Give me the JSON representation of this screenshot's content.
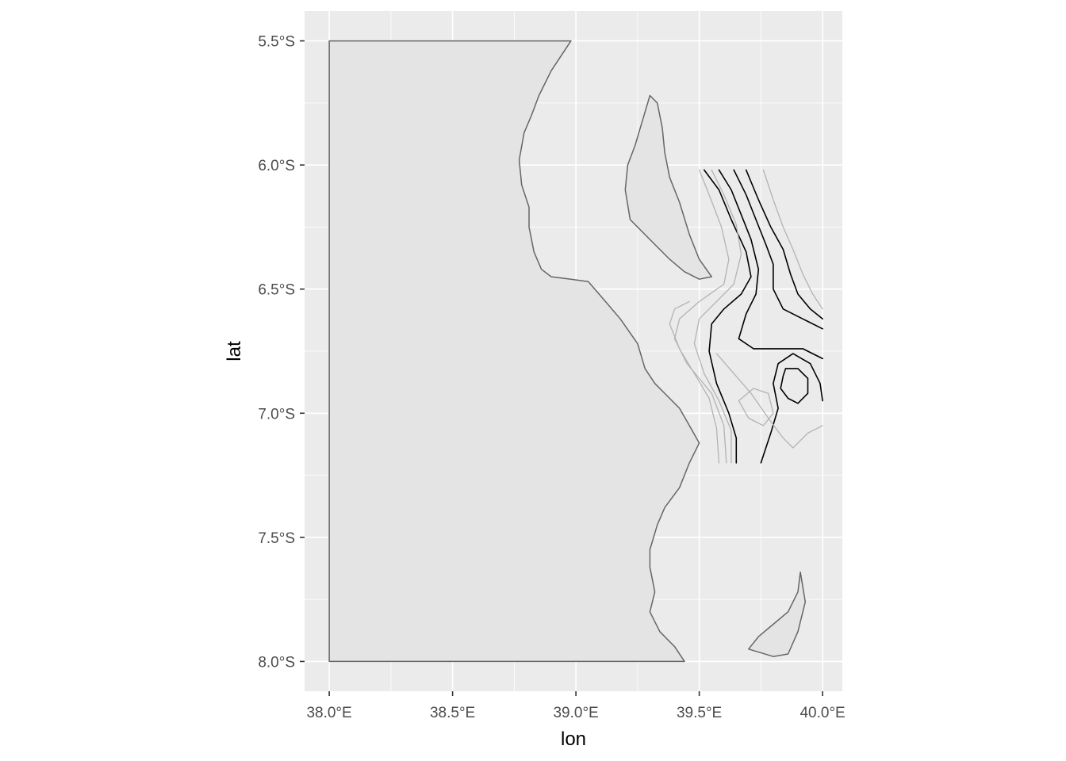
{
  "map": {
    "type": "map",
    "xlabel": "lon",
    "ylabel": "lat",
    "xlim": [
      37.9,
      40.08
    ],
    "ylim": [
      -8.12,
      -5.38
    ],
    "x_ticks": [
      {
        "value": 38.0,
        "label": "38.0°E"
      },
      {
        "value": 38.5,
        "label": "38.5°E"
      },
      {
        "value": 39.0,
        "label": "39.0°E"
      },
      {
        "value": 39.5,
        "label": "39.5°E"
      },
      {
        "value": 40.0,
        "label": "40.0°E"
      }
    ],
    "y_ticks": [
      {
        "value": -5.5,
        "label": "5.5°S"
      },
      {
        "value": -6.0,
        "label": "6.0°S"
      },
      {
        "value": -6.5,
        "label": "6.5°S"
      },
      {
        "value": -7.0,
        "label": "7.0°S"
      },
      {
        "value": -7.5,
        "label": "7.5°S"
      },
      {
        "value": -8.0,
        "label": "8.0°S"
      }
    ],
    "grid": true,
    "colors": {
      "panel": "#ebebeb",
      "grid": "#ffffff",
      "land_fill": "#e4e4e4",
      "land_outline": "#666666",
      "contour_major": "#000000",
      "contour_minor": "#b3b3b3"
    },
    "layers": [
      {
        "name": "mainland",
        "kind": "land",
        "points": [
          [
            38.0,
            -5.5
          ],
          [
            38.98,
            -5.5
          ],
          [
            38.9,
            -5.62
          ],
          [
            38.85,
            -5.72
          ],
          [
            38.82,
            -5.8
          ],
          [
            38.79,
            -5.87
          ],
          [
            38.77,
            -5.98
          ],
          [
            38.78,
            -6.08
          ],
          [
            38.81,
            -6.17
          ],
          [
            38.81,
            -6.25
          ],
          [
            38.83,
            -6.35
          ],
          [
            38.86,
            -6.42
          ],
          [
            38.9,
            -6.45
          ],
          [
            38.98,
            -6.46
          ],
          [
            39.05,
            -6.47
          ],
          [
            39.12,
            -6.55
          ],
          [
            39.18,
            -6.62
          ],
          [
            39.25,
            -6.72
          ],
          [
            39.28,
            -6.82
          ],
          [
            39.32,
            -6.88
          ],
          [
            39.37,
            -6.93
          ],
          [
            39.42,
            -6.98
          ],
          [
            39.46,
            -7.05
          ],
          [
            39.5,
            -7.12
          ],
          [
            39.46,
            -7.2
          ],
          [
            39.42,
            -7.3
          ],
          [
            39.36,
            -7.38
          ],
          [
            39.33,
            -7.45
          ],
          [
            39.3,
            -7.55
          ],
          [
            39.3,
            -7.62
          ],
          [
            39.32,
            -7.72
          ],
          [
            39.3,
            -7.8
          ],
          [
            39.34,
            -7.88
          ],
          [
            39.4,
            -7.94
          ],
          [
            39.44,
            -8.0
          ],
          [
            38.0,
            -8.0
          ]
        ]
      },
      {
        "name": "zanzibar",
        "kind": "land",
        "points": [
          [
            39.3,
            -5.72
          ],
          [
            39.33,
            -5.75
          ],
          [
            39.35,
            -5.85
          ],
          [
            39.36,
            -5.95
          ],
          [
            39.38,
            -6.05
          ],
          [
            39.42,
            -6.15
          ],
          [
            39.46,
            -6.28
          ],
          [
            39.5,
            -6.38
          ],
          [
            39.55,
            -6.45
          ],
          [
            39.5,
            -6.46
          ],
          [
            39.44,
            -6.43
          ],
          [
            39.38,
            -6.38
          ],
          [
            39.3,
            -6.3
          ],
          [
            39.22,
            -6.22
          ],
          [
            39.2,
            -6.1
          ],
          [
            39.21,
            -6.0
          ],
          [
            39.24,
            -5.92
          ],
          [
            39.27,
            -5.82
          ]
        ]
      },
      {
        "name": "mafia",
        "kind": "land",
        "points": [
          [
            39.91,
            -7.64
          ],
          [
            39.9,
            -7.72
          ],
          [
            39.86,
            -7.8
          ],
          [
            39.8,
            -7.85
          ],
          [
            39.74,
            -7.9
          ],
          [
            39.7,
            -7.95
          ],
          [
            39.8,
            -7.98
          ],
          [
            39.86,
            -7.97
          ],
          [
            39.9,
            -7.88
          ],
          [
            39.93,
            -7.76
          ]
        ]
      },
      {
        "name": "contour-1",
        "kind": "contour-major",
        "points": [
          [
            39.52,
            -6.02
          ],
          [
            39.58,
            -6.1
          ],
          [
            39.63,
            -6.22
          ],
          [
            39.69,
            -6.35
          ],
          [
            39.71,
            -6.45
          ],
          [
            39.67,
            -6.52
          ],
          [
            39.6,
            -6.58
          ],
          [
            39.55,
            -6.64
          ],
          [
            39.54,
            -6.75
          ],
          [
            39.57,
            -6.88
          ],
          [
            39.62,
            -7.0
          ],
          [
            39.65,
            -7.1
          ],
          [
            39.65,
            -7.2
          ]
        ]
      },
      {
        "name": "contour-2",
        "kind": "contour-major",
        "points": [
          [
            39.58,
            -6.02
          ],
          [
            39.63,
            -6.1
          ],
          [
            39.67,
            -6.2
          ],
          [
            39.71,
            -6.3
          ],
          [
            39.74,
            -6.42
          ],
          [
            39.73,
            -6.52
          ],
          [
            39.69,
            -6.6
          ],
          [
            39.66,
            -6.7
          ],
          [
            39.72,
            -6.74
          ],
          [
            39.82,
            -6.74
          ],
          [
            39.92,
            -6.74
          ],
          [
            40.0,
            -6.78
          ]
        ]
      },
      {
        "name": "contour-3",
        "kind": "contour-major",
        "points": [
          [
            39.64,
            -6.02
          ],
          [
            39.69,
            -6.12
          ],
          [
            39.73,
            -6.22
          ],
          [
            39.77,
            -6.32
          ],
          [
            39.8,
            -6.4
          ],
          [
            39.8,
            -6.5
          ],
          [
            39.84,
            -6.58
          ],
          [
            39.92,
            -6.62
          ],
          [
            40.0,
            -6.66
          ]
        ]
      },
      {
        "name": "contour-4",
        "kind": "contour-major",
        "points": [
          [
            39.69,
            -6.02
          ],
          [
            39.74,
            -6.14
          ],
          [
            39.79,
            -6.25
          ],
          [
            39.84,
            -6.34
          ],
          [
            39.87,
            -6.44
          ],
          [
            39.9,
            -6.52
          ],
          [
            39.95,
            -6.58
          ],
          [
            40.0,
            -6.62
          ]
        ]
      },
      {
        "name": "contour-5",
        "kind": "contour-major",
        "points": [
          [
            39.75,
            -7.2
          ],
          [
            39.79,
            -7.08
          ],
          [
            39.82,
            -6.98
          ],
          [
            39.8,
            -6.88
          ],
          [
            39.82,
            -6.8
          ],
          [
            39.88,
            -6.76
          ],
          [
            39.95,
            -6.8
          ],
          [
            39.99,
            -6.88
          ],
          [
            40.0,
            -6.95
          ]
        ]
      },
      {
        "name": "contour-6",
        "kind": "contour-major",
        "points": [
          [
            39.85,
            -6.82
          ],
          [
            39.9,
            -6.82
          ],
          [
            39.94,
            -6.86
          ],
          [
            39.94,
            -6.92
          ],
          [
            39.9,
            -6.96
          ],
          [
            39.86,
            -6.94
          ],
          [
            39.83,
            -6.9
          ],
          [
            39.84,
            -6.85
          ],
          [
            39.85,
            -6.82
          ]
        ]
      },
      {
        "name": "contour-7",
        "kind": "contour-minor",
        "points": [
          [
            39.5,
            -6.02
          ],
          [
            39.54,
            -6.12
          ],
          [
            39.59,
            -6.25
          ],
          [
            39.62,
            -6.38
          ],
          [
            39.6,
            -6.48
          ],
          [
            39.5,
            -6.55
          ],
          [
            39.42,
            -6.62
          ],
          [
            39.4,
            -6.7
          ],
          [
            39.45,
            -6.8
          ],
          [
            39.55,
            -6.92
          ],
          [
            39.6,
            -7.05
          ],
          [
            39.61,
            -7.2
          ]
        ]
      },
      {
        "name": "contour-8",
        "kind": "contour-minor",
        "points": [
          [
            39.55,
            -6.02
          ],
          [
            39.6,
            -6.12
          ],
          [
            39.65,
            -6.24
          ],
          [
            39.67,
            -6.36
          ],
          [
            39.64,
            -6.48
          ],
          [
            39.57,
            -6.55
          ],
          [
            39.5,
            -6.62
          ],
          [
            39.48,
            -6.72
          ],
          [
            39.52,
            -6.84
          ],
          [
            39.58,
            -6.95
          ],
          [
            39.63,
            -7.07
          ],
          [
            39.63,
            -7.2
          ]
        ]
      },
      {
        "name": "contour-9",
        "kind": "contour-minor",
        "points": [
          [
            39.57,
            -6.76
          ],
          [
            39.64,
            -6.84
          ],
          [
            39.71,
            -6.92
          ],
          [
            39.78,
            -7.02
          ],
          [
            39.84,
            -7.1
          ],
          [
            39.88,
            -7.14
          ],
          [
            39.94,
            -7.08
          ],
          [
            40.0,
            -7.05
          ]
        ]
      },
      {
        "name": "contour-10",
        "kind": "contour-minor",
        "points": [
          [
            39.66,
            -6.95
          ],
          [
            39.72,
            -6.9
          ],
          [
            39.78,
            -6.92
          ],
          [
            39.8,
            -7.0
          ],
          [
            39.76,
            -7.05
          ],
          [
            39.7,
            -7.02
          ],
          [
            39.66,
            -6.95
          ]
        ]
      },
      {
        "name": "contour-11",
        "kind": "contour-minor",
        "points": [
          [
            39.46,
            -6.55
          ],
          [
            39.4,
            -6.58
          ],
          [
            39.38,
            -6.64
          ],
          [
            39.42,
            -6.74
          ],
          [
            39.48,
            -6.84
          ],
          [
            39.54,
            -6.94
          ],
          [
            39.57,
            -7.06
          ],
          [
            39.58,
            -7.2
          ]
        ]
      },
      {
        "name": "contour-12",
        "kind": "contour-minor",
        "points": [
          [
            39.76,
            -6.02
          ],
          [
            39.8,
            -6.14
          ],
          [
            39.84,
            -6.25
          ],
          [
            39.88,
            -6.34
          ],
          [
            39.92,
            -6.44
          ],
          [
            39.96,
            -6.52
          ],
          [
            40.0,
            -6.58
          ]
        ]
      }
    ]
  }
}
